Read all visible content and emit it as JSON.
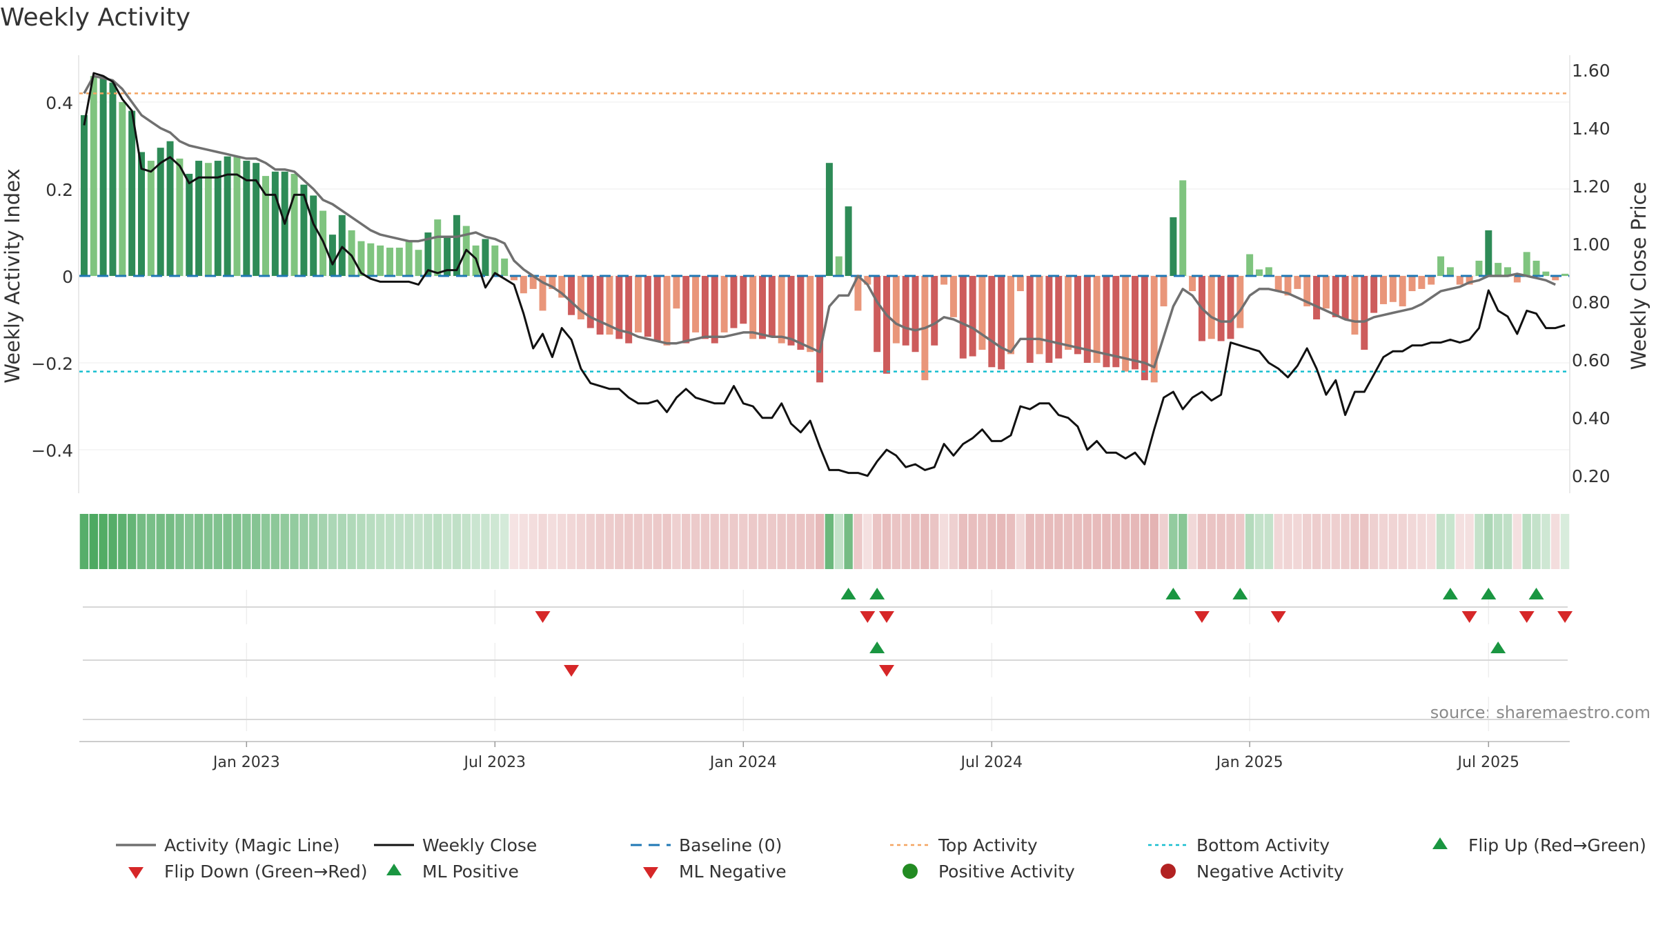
{
  "chart_data": {
    "type": "bar",
    "title": "Weekly Activity",
    "y_left_label": "Weekly Activity Index",
    "y_right_label": "Weekly Close Price",
    "y_left_ticks": [
      {
        "v": 0.4,
        "t": "0.4"
      },
      {
        "v": 0.2,
        "t": "0.2"
      },
      {
        "v": 0,
        "t": "0"
      },
      {
        "v": -0.2,
        "t": "−0.2"
      },
      {
        "v": -0.4,
        "t": "−0.4"
      }
    ],
    "y_right_ticks": [
      "0.20",
      "0.40",
      "0.60",
      "0.80",
      "1.00",
      "1.20",
      "1.40",
      "1.60"
    ],
    "y_left_range": [
      -0.5,
      0.5
    ],
    "y_right_range": [
      0.14,
      1.64
    ],
    "x_tick_labels": [
      "Jan 2023",
      "Jul 2023",
      "Jan 2024",
      "Jul 2024",
      "Jan 2025",
      "Jul 2025"
    ],
    "x_tick_weeks": [
      17,
      43,
      69,
      95,
      122,
      147
    ],
    "top_activity": 0.42,
    "bottom_activity": -0.22,
    "colors": {
      "pos_strong": "#2e8b57",
      "pos_light": "#7fc47f",
      "neg_strong": "#cd5c5c",
      "neg_light": "#e9967a",
      "magic_line": "#707070",
      "close_line": "#111111",
      "baseline": "#1f77b4",
      "top": "#f4a460",
      "bottom": "#17becf",
      "up_marker": "#1a9641",
      "down_marker": "#d62728",
      "pos_dot": "#228b22",
      "neg_dot": "#b22222"
    },
    "series": [
      {
        "name": "Activity Index",
        "values": [
          0.37,
          0.46,
          0.455,
          0.445,
          0.4,
          0.38,
          0.285,
          0.265,
          0.295,
          0.31,
          0.27,
          0.235,
          0.265,
          0.26,
          0.265,
          0.275,
          0.275,
          0.265,
          0.26,
          0.23,
          0.24,
          0.24,
          0.235,
          0.21,
          0.185,
          0.15,
          0.095,
          0.14,
          0.105,
          0.08,
          0.075,
          0.07,
          0.065,
          0.065,
          0.08,
          0.06,
          0.1,
          0.13,
          0.09,
          0.14,
          0.115,
          0.07,
          0.085,
          0.07,
          0.04,
          -0.01,
          -0.04,
          -0.03,
          -0.08,
          -0.03,
          -0.05,
          -0.09,
          -0.1,
          -0.12,
          -0.135,
          -0.135,
          -0.145,
          -0.155,
          -0.13,
          -0.14,
          -0.15,
          -0.16,
          -0.075,
          -0.155,
          -0.13,
          -0.145,
          -0.155,
          -0.13,
          -0.12,
          -0.11,
          -0.145,
          -0.145,
          -0.14,
          -0.155,
          -0.16,
          -0.17,
          -0.175,
          -0.245,
          0.26,
          0.045,
          0.16,
          -0.08,
          -0.02,
          -0.175,
          -0.225,
          -0.155,
          -0.16,
          -0.175,
          -0.24,
          -0.16,
          -0.02,
          -0.095,
          -0.19,
          -0.185,
          -0.17,
          -0.21,
          -0.215,
          -0.18,
          -0.035,
          -0.2,
          -0.18,
          -0.2,
          -0.19,
          -0.17,
          -0.18,
          -0.2,
          -0.2,
          -0.21,
          -0.21,
          -0.22,
          -0.215,
          -0.24,
          -0.245,
          -0.07,
          0.135,
          0.22,
          -0.035,
          -0.15,
          -0.145,
          -0.15,
          -0.145,
          -0.12,
          0.05,
          0.015,
          0.02,
          -0.035,
          -0.045,
          -0.03,
          -0.07,
          -0.1,
          -0.075,
          -0.095,
          -0.1,
          -0.135,
          -0.17,
          -0.085,
          -0.065,
          -0.06,
          -0.07,
          -0.035,
          -0.03,
          -0.02,
          0.045,
          0.02,
          -0.02,
          -0.02,
          0.035,
          0.105,
          0.03,
          0.02,
          -0.015,
          0.055,
          0.035,
          0.01,
          -0.01,
          0.005
        ]
      },
      {
        "name": "Activity (Magic Line)",
        "values": [
          0.42,
          0.46,
          0.455,
          0.45,
          0.43,
          0.4,
          0.37,
          0.355,
          0.34,
          0.33,
          0.31,
          0.3,
          0.295,
          0.29,
          0.285,
          0.28,
          0.275,
          0.27,
          0.27,
          0.26,
          0.245,
          0.245,
          0.24,
          0.22,
          0.2,
          0.175,
          0.165,
          0.15,
          0.135,
          0.12,
          0.105,
          0.095,
          0.09,
          0.085,
          0.08,
          0.08,
          0.085,
          0.09,
          0.09,
          0.09,
          0.095,
          0.1,
          0.09,
          0.085,
          0.075,
          0.035,
          0.015,
          0.0,
          -0.015,
          -0.025,
          -0.04,
          -0.06,
          -0.08,
          -0.095,
          -0.105,
          -0.115,
          -0.125,
          -0.13,
          -0.14,
          -0.145,
          -0.15,
          -0.155,
          -0.155,
          -0.15,
          -0.145,
          -0.14,
          -0.14,
          -0.14,
          -0.135,
          -0.13,
          -0.13,
          -0.135,
          -0.14,
          -0.14,
          -0.145,
          -0.155,
          -0.165,
          -0.175,
          -0.07,
          -0.045,
          -0.045,
          0.0,
          -0.02,
          -0.06,
          -0.09,
          -0.11,
          -0.12,
          -0.125,
          -0.12,
          -0.11,
          -0.095,
          -0.1,
          -0.11,
          -0.12,
          -0.135,
          -0.15,
          -0.165,
          -0.175,
          -0.145,
          -0.145,
          -0.145,
          -0.15,
          -0.155,
          -0.16,
          -0.165,
          -0.17,
          -0.175,
          -0.18,
          -0.185,
          -0.19,
          -0.195,
          -0.2,
          -0.21,
          -0.14,
          -0.07,
          -0.03,
          -0.045,
          -0.075,
          -0.095,
          -0.105,
          -0.105,
          -0.08,
          -0.045,
          -0.03,
          -0.03,
          -0.035,
          -0.04,
          -0.05,
          -0.06,
          -0.07,
          -0.08,
          -0.09,
          -0.1,
          -0.105,
          -0.105,
          -0.095,
          -0.09,
          -0.085,
          -0.08,
          -0.075,
          -0.065,
          -0.05,
          -0.035,
          -0.03,
          -0.025,
          -0.015,
          -0.01,
          0.0,
          0.0,
          0.0,
          0.005,
          0.0,
          -0.005,
          -0.01,
          -0.02
        ]
      },
      {
        "name": "Weekly Close",
        "values": [
          1.41,
          1.59,
          1.58,
          1.56,
          1.5,
          1.46,
          1.26,
          1.25,
          1.28,
          1.3,
          1.27,
          1.21,
          1.23,
          1.23,
          1.23,
          1.24,
          1.24,
          1.22,
          1.22,
          1.17,
          1.17,
          1.07,
          1.17,
          1.17,
          1.07,
          1.01,
          0.93,
          0.99,
          0.96,
          0.9,
          0.88,
          0.87,
          0.87,
          0.87,
          0.87,
          0.86,
          0.91,
          0.9,
          0.91,
          0.91,
          0.98,
          0.95,
          0.85,
          0.9,
          0.88,
          0.86,
          0.76,
          0.64,
          0.69,
          0.61,
          0.71,
          0.67,
          0.57,
          0.52,
          0.51,
          0.5,
          0.5,
          0.47,
          0.45,
          0.45,
          0.46,
          0.42,
          0.47,
          0.5,
          0.47,
          0.46,
          0.45,
          0.45,
          0.51,
          0.45,
          0.44,
          0.4,
          0.4,
          0.45,
          0.38,
          0.35,
          0.39,
          0.3,
          0.22,
          0.22,
          0.21,
          0.21,
          0.2,
          0.25,
          0.29,
          0.27,
          0.23,
          0.24,
          0.22,
          0.23,
          0.31,
          0.27,
          0.31,
          0.33,
          0.36,
          0.32,
          0.32,
          0.34,
          0.44,
          0.43,
          0.45,
          0.45,
          0.41,
          0.4,
          0.37,
          0.29,
          0.32,
          0.28,
          0.28,
          0.26,
          0.28,
          0.24,
          0.36,
          0.47,
          0.49,
          0.43,
          0.47,
          0.49,
          0.46,
          0.48,
          0.66,
          0.65,
          0.64,
          0.63,
          0.59,
          0.57,
          0.54,
          0.58,
          0.64,
          0.57,
          0.48,
          0.53,
          0.41,
          0.49,
          0.49,
          0.55,
          0.61,
          0.63,
          0.63,
          0.65,
          0.65,
          0.66,
          0.66,
          0.67,
          0.66,
          0.67,
          0.71,
          0.84,
          0.77,
          0.75,
          0.69,
          0.77,
          0.76,
          0.71,
          0.71,
          0.72
        ]
      }
    ],
    "heatmap_intensity": [
      0.85,
      0.9,
      0.88,
      0.86,
      0.82,
      0.78,
      0.7,
      0.68,
      0.7,
      0.7,
      0.66,
      0.62,
      0.65,
      0.64,
      0.64,
      0.65,
      0.64,
      0.62,
      0.62,
      0.58,
      0.58,
      0.56,
      0.55,
      0.52,
      0.5,
      0.46,
      0.42,
      0.42,
      0.4,
      0.38,
      0.36,
      0.34,
      0.33,
      0.32,
      0.32,
      0.3,
      0.32,
      0.34,
      0.3,
      0.32,
      0.3,
      0.27,
      0.27,
      0.25,
      0.22,
      0.18,
      0.2,
      0.22,
      0.25,
      0.22,
      0.24,
      0.26,
      0.28,
      0.3,
      0.32,
      0.33,
      0.34,
      0.35,
      0.34,
      0.34,
      0.35,
      0.36,
      0.3,
      0.35,
      0.34,
      0.35,
      0.35,
      0.34,
      0.34,
      0.33,
      0.35,
      0.35,
      0.35,
      0.36,
      0.37,
      0.38,
      0.38,
      0.45,
      0.75,
      0.3,
      0.7,
      0.35,
      0.2,
      0.38,
      0.42,
      0.38,
      0.38,
      0.4,
      0.44,
      0.38,
      0.22,
      0.3,
      0.42,
      0.42,
      0.4,
      0.44,
      0.45,
      0.42,
      0.25,
      0.44,
      0.42,
      0.44,
      0.43,
      0.42,
      0.42,
      0.44,
      0.44,
      0.45,
      0.45,
      0.46,
      0.46,
      0.48,
      0.49,
      0.3,
      0.55,
      0.6,
      0.25,
      0.38,
      0.38,
      0.38,
      0.37,
      0.35,
      0.38,
      0.3,
      0.3,
      0.26,
      0.27,
      0.26,
      0.3,
      0.32,
      0.3,
      0.31,
      0.32,
      0.35,
      0.38,
      0.3,
      0.28,
      0.28,
      0.28,
      0.25,
      0.24,
      0.22,
      0.3,
      0.28,
      0.2,
      0.2,
      0.3,
      0.42,
      0.35,
      0.32,
      0.2,
      0.35,
      0.3,
      0.25,
      0.22,
      0.2
    ],
    "flip_up_weeks": [
      80,
      83,
      114,
      121,
      143,
      147,
      152
    ],
    "flip_down_weeks": [
      48,
      82,
      84,
      117,
      125,
      145,
      151,
      155
    ],
    "ml_positive_weeks": [
      83,
      148
    ],
    "ml_negative_weeks": [
      51,
      84
    ],
    "source": "source: sharemaestro.com",
    "legend": [
      {
        "label": "Activity (Magic Line)",
        "symbol": "line-gray"
      },
      {
        "label": "Weekly Close",
        "symbol": "line-black"
      },
      {
        "label": "Baseline (0)",
        "symbol": "dash-blue"
      },
      {
        "label": "Top Activity",
        "symbol": "dot-orange"
      },
      {
        "label": "Bottom Activity",
        "symbol": "dot-cyan"
      },
      {
        "label": "Flip Up (Red→Green)",
        "symbol": "tri-up"
      },
      {
        "label": "Flip Down (Green→Red)",
        "symbol": "tri-down"
      },
      {
        "label": "ML Positive",
        "symbol": "tri-up"
      },
      {
        "label": "ML Negative",
        "symbol": "tri-down"
      },
      {
        "label": "Positive Activity",
        "symbol": "dot-green"
      },
      {
        "label": "Negative Activity",
        "symbol": "dot-red"
      }
    ]
  }
}
